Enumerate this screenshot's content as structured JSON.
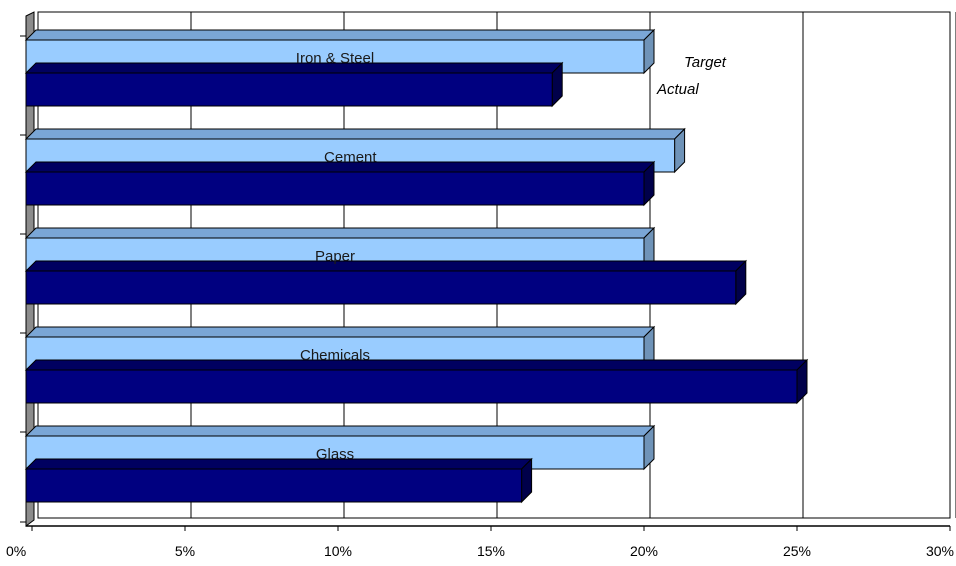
{
  "chart_data": {
    "type": "bar",
    "orientation": "horizontal",
    "style": "3d",
    "categories": [
      "Iron & Steel",
      "Cement",
      "Paper",
      "Chemicals",
      "Glass"
    ],
    "series": [
      {
        "name": "Target",
        "values": [
          20,
          21,
          20,
          20,
          20
        ],
        "color": "#99ccff"
      },
      {
        "name": "Actual",
        "values": [
          17,
          20,
          23,
          25,
          16
        ],
        "color": "#000080"
      }
    ],
    "x_ticks": [
      "0%",
      "5%",
      "10%",
      "15%",
      "20%",
      "25%",
      "30%"
    ],
    "xlim": [
      0,
      30
    ],
    "grid": "vertical",
    "legend_position": "top-right"
  }
}
